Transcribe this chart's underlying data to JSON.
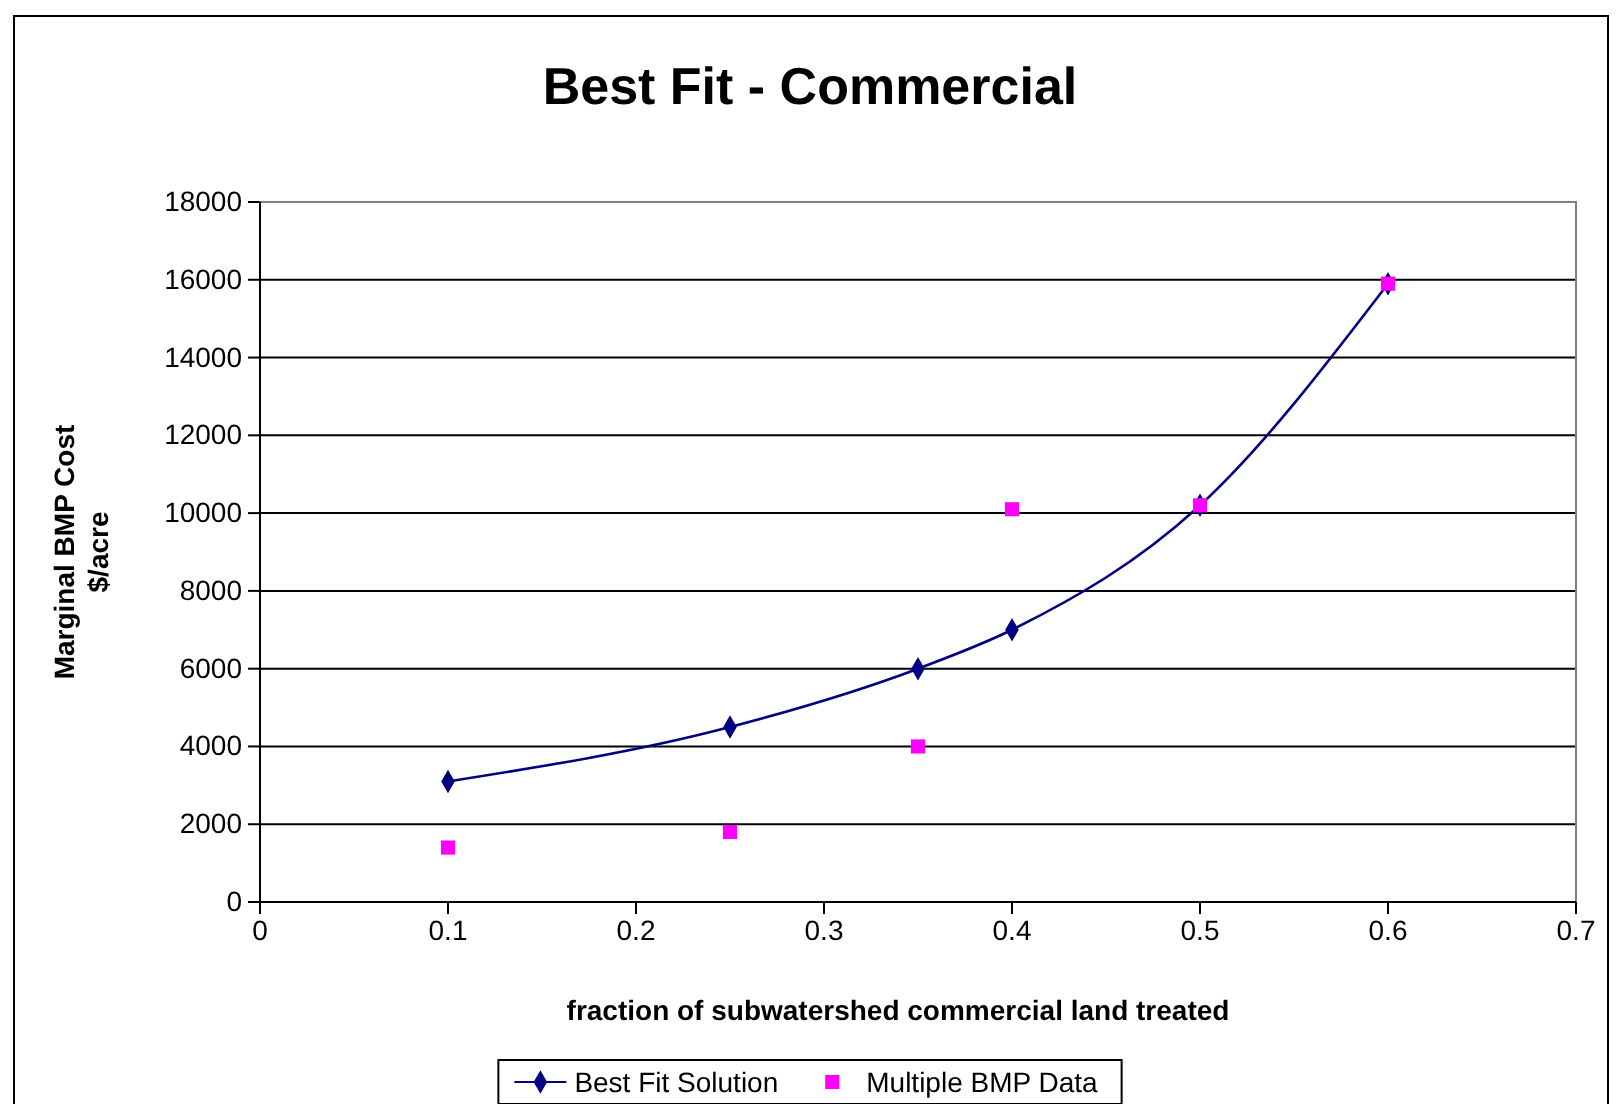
{
  "chart_data": {
    "type": "line",
    "title": "Best Fit - Commercial",
    "xlabel": "fraction of subwatershed commercial land treated",
    "ylabel": "Marginal BMP Cost $/acre",
    "x": [
      0.1,
      0.25,
      0.35,
      0.4,
      0.5,
      0.6
    ],
    "series": [
      {
        "name": "Best Fit Solution",
        "color": "#000080",
        "marker": "diamond",
        "values": [
          3100,
          4500,
          6000,
          7000,
          10200,
          15900
        ]
      },
      {
        "name": "Multiple BMP Data",
        "type": "scatter",
        "color": "#ff00ff",
        "marker": "square",
        "values": [
          1400,
          1800,
          4000,
          10100,
          10200,
          15900
        ]
      }
    ],
    "xlim": [
      0,
      0.7
    ],
    "xticks": [
      0,
      0.1,
      0.2,
      0.3,
      0.4,
      0.5,
      0.6,
      0.7
    ],
    "ylim": [
      0,
      18000
    ],
    "yticks": [
      0,
      2000,
      4000,
      6000,
      8000,
      10000,
      12000,
      14000,
      16000,
      18000
    ],
    "grid": "y",
    "legend": "bottom"
  }
}
